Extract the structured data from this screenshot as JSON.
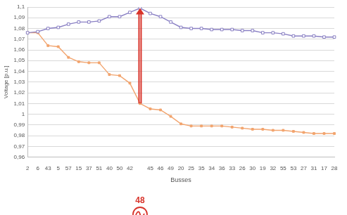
{
  "chart_data": {
    "type": "line",
    "x_label": "Busses",
    "y_label": "Voltage [p.u.]",
    "categories": [
      "2",
      "6",
      "43",
      "5",
      "57",
      "15",
      "37",
      "51",
      "40",
      "50",
      "42",
      "48",
      "45",
      "46",
      "49",
      "20",
      "25",
      "35",
      "34",
      "36",
      "33",
      "26",
      "30",
      "19",
      "32",
      "55",
      "53",
      "27",
      "31",
      "17",
      "28"
    ],
    "series": [
      {
        "color": "#8a80c4",
        "marker": "square-open",
        "values": [
          1.076,
          1.077,
          1.08,
          1.081,
          1.084,
          1.086,
          1.086,
          1.087,
          1.091,
          1.091,
          1.095,
          1.099,
          1.094,
          1.091,
          1.086,
          1.081,
          1.08,
          1.08,
          1.079,
          1.079,
          1.079,
          1.078,
          1.078,
          1.076,
          1.076,
          1.075,
          1.073,
          1.073,
          1.073,
          1.072,
          1.072
        ]
      },
      {
        "color": "#f2a46e",
        "marker": "square",
        "values": [
          1.076,
          1.076,
          1.064,
          1.063,
          1.053,
          1.049,
          1.048,
          1.048,
          1.037,
          1.036,
          1.029,
          1.01,
          1.005,
          1.004,
          0.998,
          0.991,
          0.989,
          0.989,
          0.989,
          0.989,
          0.988,
          0.987,
          0.986,
          0.986,
          0.985,
          0.985,
          0.984,
          0.983,
          0.982,
          0.982,
          0.982
        ]
      }
    ],
    "annotations": [
      {
        "text": "48"
      }
    ],
    "ylim": [
      0.96,
      1.1
    ],
    "yticks": [
      {
        "value": 0.96,
        "label": "0,96"
      },
      {
        "value": 0.97,
        "label": "0,97"
      },
      {
        "value": 0.98,
        "label": "0,98"
      },
      {
        "value": 0.99,
        "label": "0,99"
      },
      1,
      {
        "value": 1.01,
        "label": "1,01"
      },
      {
        "value": 1.02,
        "label": "1,02"
      },
      {
        "value": 1.03,
        "label": "1,03"
      },
      {
        "value": 1.04,
        "label": "1,04"
      },
      {
        "value": 1.05,
        "label": "1,05"
      },
      {
        "value": 1.06,
        "label": "1,06"
      },
      {
        "value": 1.07,
        "label": "1,07"
      },
      {
        "value": 1.08,
        "label": "1,08"
      },
      {
        "value": 1.09,
        "label": "1,09"
      },
      {
        "value": 1.1,
        "label": "1,1"
      }
    ],
    "grid": true
  }
}
